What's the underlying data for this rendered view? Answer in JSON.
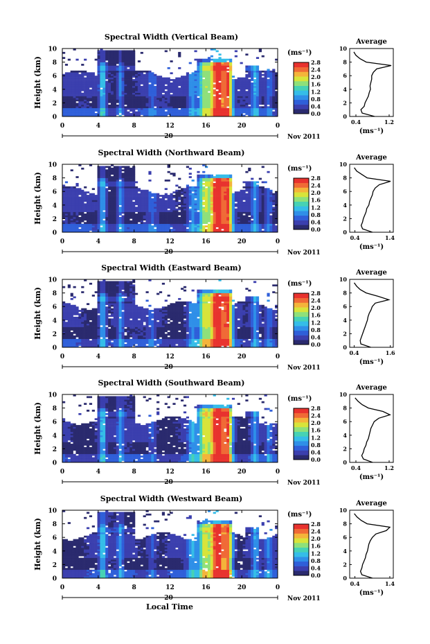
{
  "figure": {
    "xlabel": "Local Time",
    "date_label": "Nov 2011",
    "day_label": "20",
    "y_axis_label": "Height (km)",
    "colorbar_unit": "(ms⁻¹)",
    "avg_title": "Average",
    "avg_unit": "(ms⁻¹)",
    "colors": {
      "colormap": [
        "#2a2a6e",
        "#3b3fae",
        "#2f5fd9",
        "#2f8fe8",
        "#35bde8",
        "#46d2b4",
        "#8ee07a",
        "#d8e43a",
        "#f4b43a",
        "#f06a36",
        "#e8322e"
      ],
      "background": "#ffffff"
    }
  },
  "chart_data": [
    {
      "type": "heatmap",
      "title": "Spectral Width (Vertical Beam)",
      "xlim": [
        0,
        24
      ],
      "ylim": [
        0,
        10
      ],
      "xticks": [
        "0",
        "4",
        "8",
        "12",
        "16",
        "20",
        "0"
      ],
      "yticks": [
        "0",
        "2",
        "4",
        "6",
        "8",
        "10"
      ],
      "colorbar_ticks": [
        "0.0",
        "0.4",
        "0.8",
        "1.2",
        "1.6",
        "2.0",
        "2.4",
        "2.8"
      ],
      "colorbar_range": [
        0,
        2.8
      ],
      "avg_profile": {
        "type": "line",
        "xticks": [
          "0.4",
          "1.2"
        ],
        "xlim": [
          0.25,
          1.3
        ],
        "ylim": [
          0,
          10
        ],
        "y": [
          0,
          0.5,
          1,
          1.5,
          2,
          2.5,
          3,
          3.5,
          4,
          4.5,
          5,
          5.5,
          6,
          6.5,
          7,
          7.5,
          8,
          8.5,
          9,
          9.5
        ],
        "x": [
          0.85,
          0.55,
          0.52,
          0.6,
          0.62,
          0.66,
          0.7,
          0.72,
          0.75,
          0.74,
          0.76,
          0.78,
          0.78,
          0.82,
          0.9,
          1.25,
          0.65,
          0.5,
          0.4,
          0.35
        ]
      }
    },
    {
      "type": "heatmap",
      "title": "Spectral Width (Northward Beam)",
      "xlim": [
        0,
        24
      ],
      "ylim": [
        0,
        10
      ],
      "xticks": [
        "0",
        "4",
        "8",
        "12",
        "16",
        "20",
        "0"
      ],
      "yticks": [
        "0",
        "2",
        "4",
        "6",
        "8",
        "10"
      ],
      "colorbar_ticks": [
        "0.0",
        "0.4",
        "0.8",
        "1.2",
        "1.6",
        "2.0",
        "2.4",
        "2.8"
      ],
      "colorbar_range": [
        0,
        2.8
      ],
      "avg_profile": {
        "type": "line",
        "xticks": [
          "0.4",
          "1.4"
        ],
        "xlim": [
          0.25,
          1.5
        ],
        "ylim": [
          0,
          10
        ],
        "y": [
          0,
          0.5,
          1,
          1.5,
          2,
          2.5,
          3,
          3.5,
          4,
          4.5,
          5,
          5.5,
          6,
          6.5,
          7,
          7.5,
          8,
          8.5,
          9,
          9.5
        ],
        "x": [
          0.9,
          0.62,
          0.58,
          0.62,
          0.64,
          0.68,
          0.72,
          0.74,
          0.8,
          0.82,
          0.86,
          0.9,
          0.92,
          0.98,
          1.1,
          1.42,
          0.75,
          0.6,
          0.45,
          0.38
        ]
      }
    },
    {
      "type": "heatmap",
      "title": "Spectral Width (Eastward Beam)",
      "xlim": [
        0,
        24
      ],
      "ylim": [
        0,
        10
      ],
      "xticks": [
        "0",
        "4",
        "8",
        "12",
        "16",
        "20",
        "0"
      ],
      "yticks": [
        "0",
        "2",
        "4",
        "6",
        "8",
        "10"
      ],
      "colorbar_ticks": [
        "0.0",
        "0.4",
        "0.8",
        "1.2",
        "1.6",
        "2.0",
        "2.4",
        "2.8"
      ],
      "colorbar_range": [
        0,
        2.8
      ],
      "avg_profile": {
        "type": "line",
        "xticks": [
          "0.4",
          "1.6"
        ],
        "xlim": [
          0.25,
          1.7
        ],
        "ylim": [
          0,
          10
        ],
        "y": [
          0,
          0.5,
          1,
          1.5,
          2,
          2.5,
          3,
          3.5,
          4,
          4.5,
          5,
          5.5,
          6,
          6.5,
          7,
          7.5,
          8,
          8.5,
          9,
          9.5
        ],
        "x": [
          0.95,
          0.62,
          0.6,
          0.64,
          0.68,
          0.72,
          0.76,
          0.8,
          0.84,
          0.86,
          0.9,
          0.96,
          1.0,
          1.1,
          1.55,
          1.2,
          0.8,
          0.6,
          0.48,
          0.4
        ]
      }
    },
    {
      "type": "heatmap",
      "title": "Spectral Width (Southward Beam)",
      "xlim": [
        0,
        24
      ],
      "ylim": [
        0,
        10
      ],
      "xticks": [
        "0",
        "4",
        "8",
        "12",
        "16",
        "20",
        "0"
      ],
      "yticks": [
        "0",
        "2",
        "4",
        "6",
        "8",
        "10"
      ],
      "colorbar_ticks": [
        "0.0",
        "0.4",
        "0.8",
        "1.2",
        "1.6",
        "2.0",
        "2.4",
        "2.8"
      ],
      "colorbar_range": [
        0,
        2.8
      ],
      "avg_profile": {
        "type": "line",
        "xticks": [
          "0.4",
          "1.2"
        ],
        "xlim": [
          0.25,
          1.3
        ],
        "ylim": [
          0,
          10
        ],
        "y": [
          0,
          0.5,
          1,
          1.5,
          2,
          2.5,
          3,
          3.5,
          4,
          4.5,
          5,
          5.5,
          6,
          6.5,
          7,
          7.5,
          8,
          8.5,
          9,
          9.5
        ],
        "x": [
          0.8,
          0.58,
          0.54,
          0.58,
          0.6,
          0.64,
          0.66,
          0.7,
          0.72,
          0.74,
          0.76,
          0.8,
          0.84,
          0.95,
          1.22,
          1.05,
          0.7,
          0.55,
          0.45,
          0.38
        ]
      }
    },
    {
      "type": "heatmap",
      "title": "Spectral Width (Westward Beam)",
      "xlim": [
        0,
        24
      ],
      "ylim": [
        0,
        10
      ],
      "xticks": [
        "0",
        "4",
        "8",
        "12",
        "16",
        "20",
        "0"
      ],
      "yticks": [
        "0",
        "2",
        "4",
        "6",
        "8",
        "10"
      ],
      "colorbar_ticks": [
        "0.0",
        "0.4",
        "0.8",
        "1.2",
        "1.6",
        "2.0",
        "2.4",
        "2.8"
      ],
      "colorbar_range": [
        0,
        2.8
      ],
      "avg_profile": {
        "type": "line",
        "xticks": [
          "0.4",
          "1.4"
        ],
        "xlim": [
          0.25,
          1.5
        ],
        "ylim": [
          0,
          10
        ],
        "y": [
          0,
          0.5,
          1,
          1.5,
          2,
          2.5,
          3,
          3.5,
          4,
          4.5,
          5,
          5.5,
          6,
          6.5,
          7,
          7.5,
          8,
          8.5,
          9,
          9.5
        ],
        "x": [
          0.9,
          0.6,
          0.56,
          0.6,
          0.62,
          0.66,
          0.7,
          0.72,
          0.76,
          0.78,
          0.8,
          0.84,
          0.9,
          1.0,
          1.3,
          1.4,
          0.75,
          0.58,
          0.46,
          0.38
        ]
      }
    }
  ]
}
